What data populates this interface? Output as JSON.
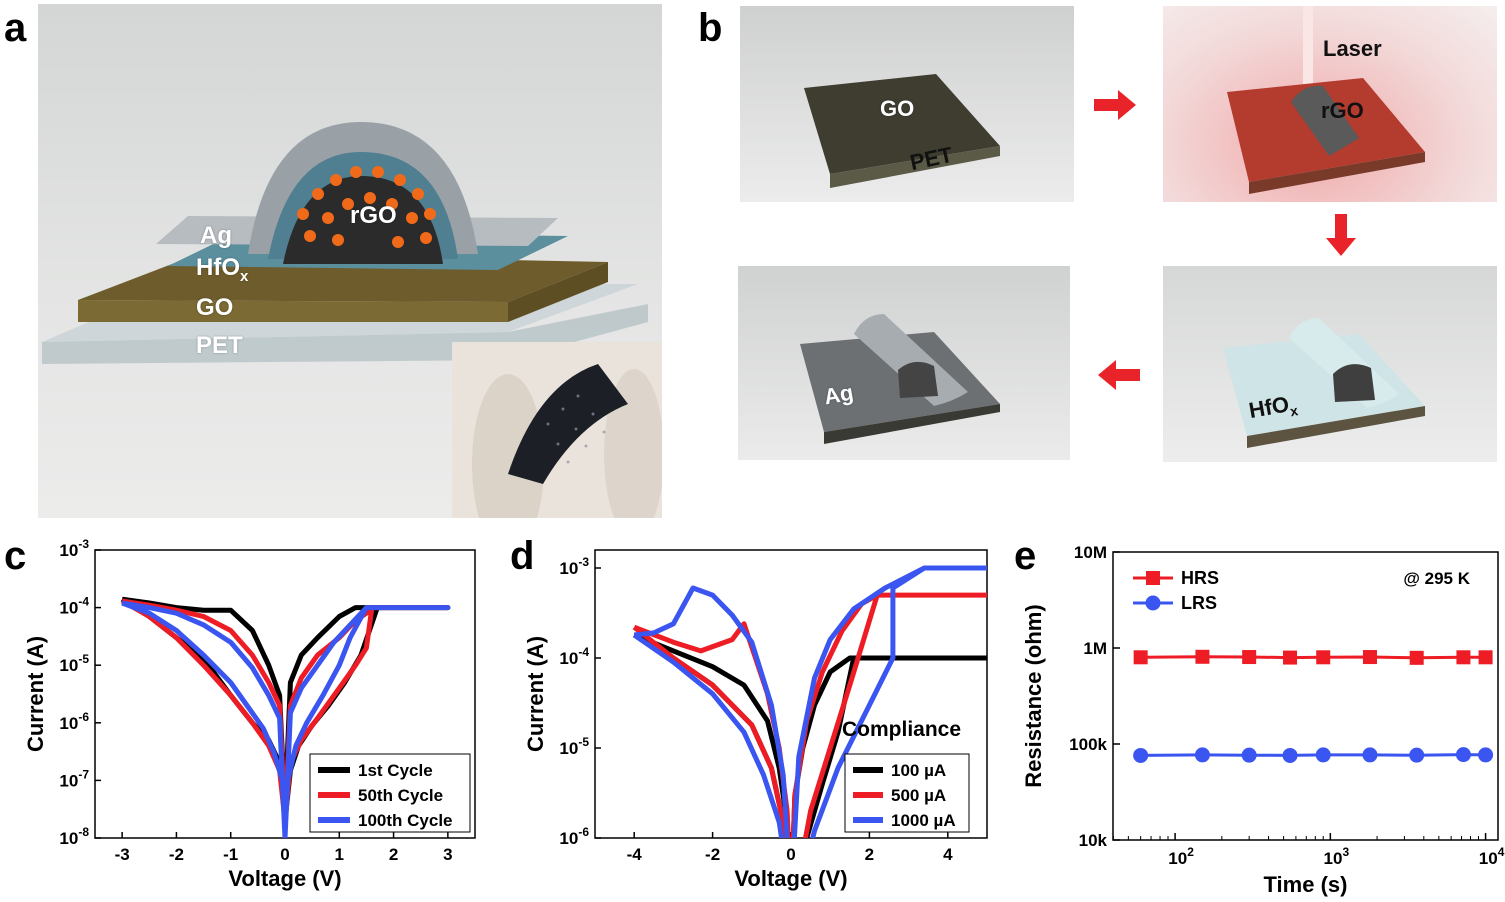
{
  "panels": {
    "a": {
      "letter": "a",
      "labels": {
        "ag": "Ag",
        "hfo": "HfO",
        "hfo_sub": "x",
        "go": "GO",
        "pet": "PET",
        "rgo": "rGO"
      }
    },
    "b": {
      "letter": "b",
      "step1": {
        "go": "GO",
        "pet": "PET"
      },
      "step2": {
        "laser": "Laser",
        "rgo": "rGO"
      },
      "step3": {
        "hfo": "HfO",
        "hfo_sub": "x"
      },
      "step4": {
        "ag": "Ag"
      },
      "colors": {
        "arrow": "#e8242a"
      }
    },
    "c": {
      "letter": "c"
    },
    "d": {
      "letter": "d"
    },
    "e": {
      "letter": "e"
    }
  },
  "chart_data": [
    {
      "id": "c",
      "type": "line",
      "xlabel": "Voltage (V)",
      "ylabel": "Current (A)",
      "xlim": [
        -3.5,
        3.5
      ],
      "ylim_log10": [
        -8,
        -3
      ],
      "yscale": "log",
      "xticks": [
        "-3",
        "-2",
        "-1",
        "0",
        "1",
        "2",
        "3"
      ],
      "xtick_values": [
        -3,
        -2,
        -1,
        0,
        1,
        2,
        3
      ],
      "yticks_exp": [
        -8,
        -7,
        -6,
        -5,
        -4,
        -3
      ],
      "legend_position": "bottom-right",
      "series": [
        {
          "name": "1st Cycle",
          "color": "#000000",
          "x": [
            -3,
            -2.5,
            -2,
            -1.5,
            -1,
            -0.6,
            -0.3,
            -0.1,
            0,
            0.1,
            0.3,
            0.6,
            1.0,
            1.3,
            1.5,
            1.7,
            3,
            1.7,
            1.4,
            1.1,
            0.8,
            0.5,
            0.25,
            0.1,
            0,
            -0.1,
            -0.3,
            -0.6,
            -1.0,
            -1.5,
            -2,
            -2.5,
            -3
          ],
          "y": [
            0.00014,
            0.00012,
            0.0001,
            9e-05,
            9e-05,
            4e-05,
            1e-05,
            3e-06,
            3e-08,
            5e-06,
            1.5e-05,
            3e-05,
            7e-05,
            0.0001,
            0.0001,
            0.0001,
            0.0001,
            0.0001,
            1.5e-05,
            5e-06,
            2e-06,
            9e-07,
            4e-07,
            1.5e-07,
            2e-08,
            2e-07,
            5e-07,
            1e-06,
            3e-06,
            1.3e-05,
            3e-05,
            7e-05,
            0.00014
          ]
        },
        {
          "name": "50th Cycle",
          "color": "#ee1c25",
          "x": [
            -3,
            -2.5,
            -2,
            -1.5,
            -1,
            -0.6,
            -0.3,
            -0.1,
            0,
            0.1,
            0.3,
            0.6,
            1.0,
            1.3,
            1.5,
            1.6,
            3,
            1.6,
            1.5,
            1.3,
            1.0,
            0.6,
            0.3,
            0.1,
            0,
            -0.1,
            -0.3,
            -0.6,
            -1.0,
            -1.5,
            -2,
            -2.5,
            -3
          ],
          "y": [
            0.00013,
            0.00011,
            9e-05,
            7e-05,
            4e-05,
            1.5e-05,
            5e-06,
            2e-06,
            2e-08,
            2e-06,
            6e-06,
            1.5e-05,
            3e-05,
            6e-05,
            8e-05,
            0.0001,
            0.0001,
            0.0001,
            2e-05,
            1e-05,
            4e-06,
            1.2e-06,
            5e-07,
            2e-07,
            2e-08,
            1.5e-07,
            4e-07,
            1e-06,
            3e-06,
            1e-05,
            3e-05,
            7e-05,
            0.00013
          ]
        },
        {
          "name": "100th Cycle",
          "color": "#3a55f0",
          "x": [
            -3,
            -2.5,
            -2,
            -1.5,
            -1,
            -0.6,
            -0.3,
            -0.1,
            0,
            0.1,
            0.3,
            0.6,
            0.9,
            1.2,
            1.5,
            3,
            1.5,
            1.2,
            1.0,
            0.7,
            0.4,
            0.2,
            0.05,
            0,
            -0.05,
            -0.2,
            -0.4,
            -0.7,
            -1.0,
            -1.5,
            -2,
            -2.5,
            -3
          ],
          "y": [
            0.00012,
            0.0001,
            8e-05,
            5e-05,
            2.5e-05,
            9e-06,
            3e-06,
            1.2e-06,
            1e-08,
            1.5e-06,
            4e-06,
            1e-05,
            2.5e-05,
            5e-05,
            0.0001,
            0.0001,
            0.0001,
            3e-05,
            1e-05,
            3e-06,
            1e-06,
            4e-07,
            1e-07,
            1e-08,
            1e-07,
            3e-07,
            8e-07,
            2e-06,
            5e-06,
            1.5e-05,
            4e-05,
            8e-05,
            0.00012
          ]
        }
      ]
    },
    {
      "id": "d",
      "type": "line",
      "xlabel": "Voltage (V)",
      "ylabel": "Current (A)",
      "xlim": [
        -5,
        5
      ],
      "ylim_log10": [
        -6,
        -2.8
      ],
      "yscale": "log",
      "xticks": [
        "-4",
        "-2",
        "0",
        "2",
        "4"
      ],
      "xtick_values": [
        -4,
        -2,
        0,
        2,
        4
      ],
      "yticks_exp": [
        -6,
        -5,
        -4,
        -3
      ],
      "legend_title": "Compliance",
      "legend_position": "bottom-right",
      "series": [
        {
          "name": "100 µA",
          "color": "#000000",
          "x": [
            -4,
            -3,
            -2,
            -1.2,
            -0.6,
            -0.3,
            -0.1,
            0,
            0.1,
            0.3,
            0.6,
            1.0,
            1.5,
            1.6,
            5,
            1.6,
            1.2,
            0.8,
            0.4,
            0.15,
            0,
            -0.2,
            -0.5,
            -1,
            -2,
            -3,
            -4
          ],
          "y": [
            0.00018,
            0.00012,
            8e-05,
            5e-05,
            2e-05,
            6e-06,
            1.5e-06,
            2e-07,
            3e-06,
            1e-05,
            3e-05,
            7e-05,
            0.0001,
            0.0001,
            0.0001,
            0.0001,
            1.5e-05,
            4e-06,
            1e-06,
            2.5e-07,
            2e-07,
            1.5e-06,
            6e-06,
            1.8e-05,
            5e-05,
            0.0001,
            0.00018
          ]
        },
        {
          "name": "500 µA",
          "color": "#ee1c25",
          "x": [
            -4,
            -3,
            -2.3,
            -1.5,
            -1.2,
            -0.6,
            -0.3,
            -0.1,
            0,
            0.1,
            0.4,
            0.8,
            1.3,
            1.8,
            2.2,
            5,
            2.2,
            1.5,
            1.0,
            0.5,
            0.2,
            0,
            -0.2,
            -0.5,
            -1,
            -2,
            -3,
            -4
          ],
          "y": [
            0.00022,
            0.00015,
            0.00012,
            0.00016,
            0.00024,
            4e-05,
            1e-05,
            2e-06,
            2e-07,
            3e-06,
            2e-05,
            7e-05,
            0.0002,
            0.0004,
            0.0005,
            0.0005,
            0.0005,
            5e-05,
            1e-05,
            2e-06,
            4e-07,
            2e-07,
            1.5e-06,
            6e-06,
            1.8e-05,
            5e-05,
            0.0001,
            0.00022
          ]
        },
        {
          "name": "1000 µA",
          "color": "#3a55f0",
          "x": [
            -4,
            -3.5,
            -3,
            -2.5,
            -2,
            -1.5,
            -1,
            -0.5,
            -0.2,
            0,
            0.2,
            0.6,
            1.0,
            1.6,
            2.4,
            3.4,
            5,
            3.4,
            2.6,
            2.6,
            2.0,
            1.2,
            0.6,
            0.2,
            0,
            -0.3,
            -0.7,
            -1.2,
            -2,
            -3,
            -4
          ],
          "y": [
            0.00018,
            0.00019,
            0.00024,
            0.0006,
            0.0005,
            0.0003,
            0.00015,
            3e-05,
            5e-06,
            2e-07,
            8e-06,
            6e-05,
            0.00016,
            0.00035,
            0.0006,
            0.001,
            0.001,
            0.001,
            0.0006,
            0.0001,
            3e-05,
            6e-06,
            1.2e-06,
            2.5e-07,
            2e-07,
            1.5e-06,
            5e-06,
            1.5e-05,
            4e-05,
            9e-05,
            0.00018
          ]
        }
      ]
    },
    {
      "id": "e",
      "type": "scatter",
      "xlabel": "Time (s)",
      "ylabel": "Resistance (ohm)",
      "xscale": "log",
      "yscale": "log",
      "xlim_log10": [
        1.6,
        4.08
      ],
      "ylim_log10": [
        4,
        7
      ],
      "xticks_exp": [
        2,
        3,
        4
      ],
      "yticks": [
        "10k",
        "100k",
        "1M",
        "10M"
      ],
      "ytick_values_log10": [
        4,
        5,
        6,
        7
      ],
      "annotation": "@ 295 K",
      "legend_position": "top-left",
      "series": [
        {
          "name": "HRS",
          "color": "#ee1c25",
          "marker": "square",
          "x": [
            60,
            150,
            300,
            550,
            900,
            1800,
            3600,
            7200,
            10000
          ],
          "y": [
            800000,
            810000,
            805000,
            795000,
            800000,
            805000,
            790000,
            800000,
            800000
          ]
        },
        {
          "name": "LRS",
          "color": "#3a55f0",
          "marker": "circle",
          "x": [
            60,
            150,
            300,
            550,
            900,
            1800,
            3600,
            7200,
            10000
          ],
          "y": [
            76000,
            77000,
            76500,
            76000,
            77000,
            77000,
            76500,
            77500,
            77000
          ]
        }
      ]
    }
  ]
}
